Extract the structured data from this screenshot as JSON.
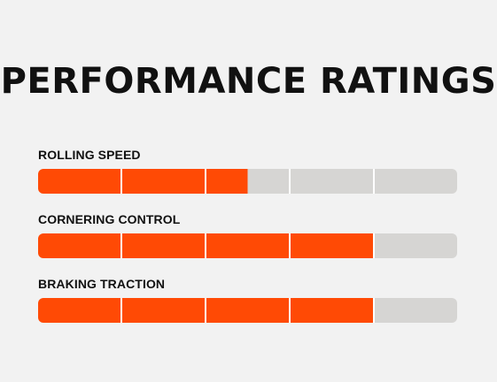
{
  "title": "PERFORMANCE RATINGS",
  "colors": {
    "filled": "#ff4a05",
    "empty": "#d6d5d3",
    "background": "#f2f2f2",
    "text": "#111111"
  },
  "ratings": [
    {
      "label": "ROLLING SPEED",
      "value": 2.5,
      "max": 5
    },
    {
      "label": "CORNERING CONTROL",
      "value": 4,
      "max": 5
    },
    {
      "label": "BRAKING TRACTION",
      "value": 4,
      "max": 5
    }
  ]
}
